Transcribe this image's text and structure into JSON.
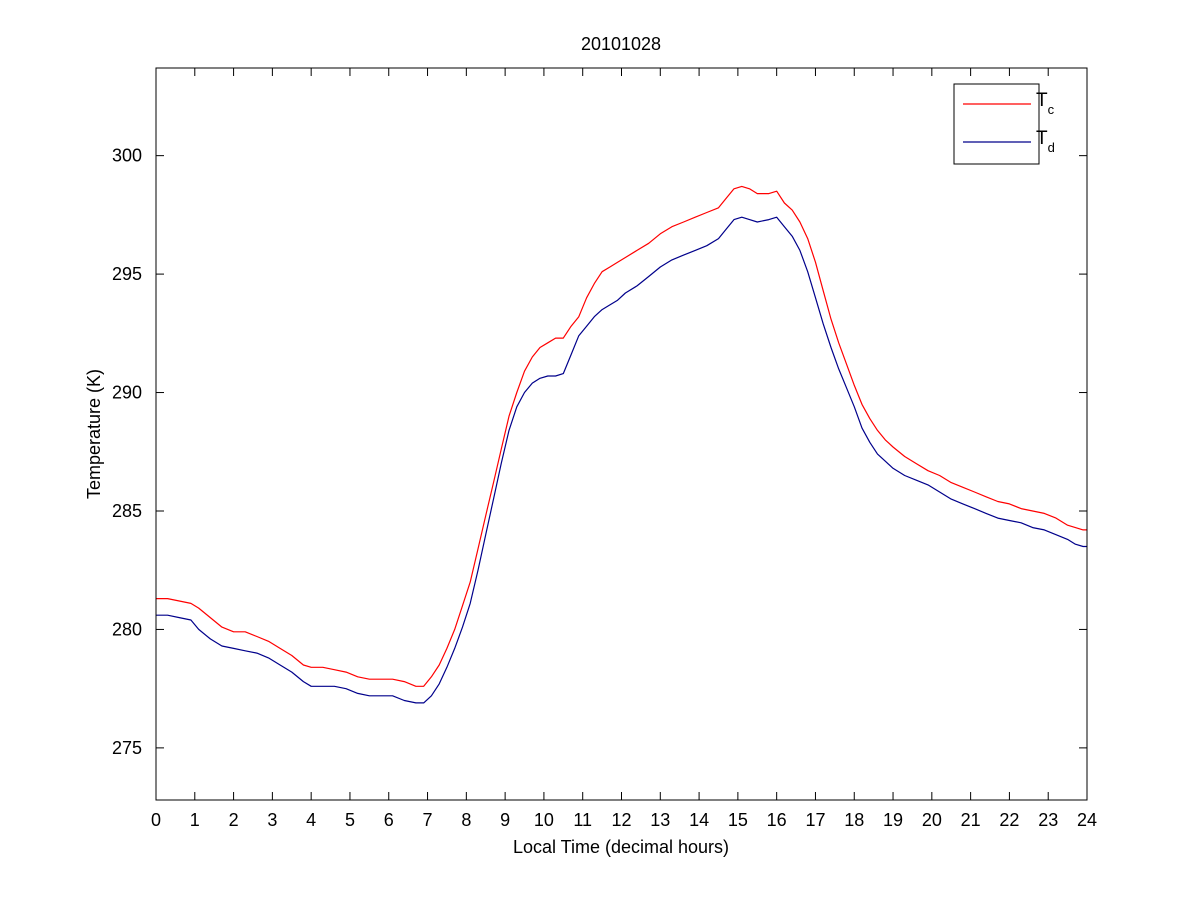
{
  "chart_data": {
    "type": "line",
    "title": "20101028",
    "xlabel": "Local Time (decimal hours)",
    "ylabel": "Temperature (K)",
    "xlim": [
      0,
      24
    ],
    "ylim": [
      272.8,
      303.7
    ],
    "xticks": [
      0,
      1,
      2,
      3,
      4,
      5,
      6,
      7,
      8,
      9,
      10,
      11,
      12,
      13,
      14,
      15,
      16,
      17,
      18,
      19,
      20,
      21,
      22,
      23,
      24
    ],
    "xtick_labels": [
      "0",
      "1",
      "2",
      "3",
      "4",
      "5",
      "6",
      "7",
      "8",
      "9",
      "10",
      "11",
      "12",
      "13",
      "14",
      "15",
      "16",
      "17",
      "18",
      "19",
      "20",
      "21",
      "22",
      "23",
      "24"
    ],
    "yticks": [
      275,
      280,
      285,
      290,
      295,
      300
    ],
    "ytick_labels": [
      "275",
      "280",
      "285",
      "290",
      "295",
      "300"
    ],
    "grid": false,
    "legend_position": "top-right",
    "series": [
      {
        "name": "T",
        "subscript": "c",
        "color": "#ff0000",
        "x": [
          0,
          0.3,
          0.6,
          0.9,
          1.1,
          1.4,
          1.7,
          2,
          2.3,
          2.6,
          2.9,
          3.2,
          3.5,
          3.8,
          4,
          4.3,
          4.6,
          4.9,
          5.2,
          5.5,
          5.8,
          6.1,
          6.4,
          6.7,
          6.9,
          7.1,
          7.3,
          7.5,
          7.7,
          7.9,
          8.1,
          8.3,
          8.5,
          8.7,
          8.9,
          9.1,
          9.3,
          9.5,
          9.7,
          9.9,
          10.1,
          10.3,
          10.5,
          10.7,
          10.9,
          11.1,
          11.3,
          11.5,
          11.7,
          11.9,
          12.1,
          12.4,
          12.7,
          13,
          13.3,
          13.6,
          13.9,
          14.2,
          14.5,
          14.7,
          14.9,
          15.1,
          15.3,
          15.5,
          15.8,
          16,
          16.2,
          16.4,
          16.6,
          16.8,
          17,
          17.2,
          17.4,
          17.6,
          17.8,
          18,
          18.2,
          18.4,
          18.6,
          18.8,
          19,
          19.3,
          19.6,
          19.9,
          20.2,
          20.5,
          20.8,
          21.1,
          21.4,
          21.7,
          22,
          22.3,
          22.6,
          22.9,
          23.2,
          23.5,
          23.7,
          23.9,
          24
        ],
        "y": [
          281.3,
          281.3,
          281.2,
          281.1,
          280.9,
          280.5,
          280.1,
          279.9,
          279.9,
          279.7,
          279.5,
          279.2,
          278.9,
          278.5,
          278.4,
          278.4,
          278.3,
          278.2,
          278.0,
          277.9,
          277.9,
          277.9,
          277.8,
          277.6,
          277.6,
          278.0,
          278.5,
          279.2,
          280.0,
          281.0,
          282.0,
          283.4,
          284.8,
          286.2,
          287.6,
          289.0,
          290.0,
          290.9,
          291.5,
          291.9,
          292.1,
          292.3,
          292.3,
          292.8,
          293.2,
          294.0,
          294.6,
          295.1,
          295.3,
          295.5,
          295.7,
          296.0,
          296.3,
          296.7,
          297.0,
          297.2,
          297.4,
          297.6,
          297.8,
          298.2,
          298.6,
          298.7,
          298.6,
          298.4,
          298.4,
          298.5,
          298.0,
          297.7,
          297.2,
          296.5,
          295.5,
          294.3,
          293.1,
          292.1,
          291.2,
          290.3,
          289.5,
          288.9,
          288.4,
          288.0,
          287.7,
          287.3,
          287.0,
          286.7,
          286.5,
          286.2,
          286.0,
          285.8,
          285.6,
          285.4,
          285.3,
          285.1,
          285.0,
          284.9,
          284.7,
          284.4,
          284.3,
          284.2,
          284.2
        ]
      },
      {
        "name": "T",
        "subscript": "d",
        "color": "#00008b",
        "x": [
          0,
          0.3,
          0.6,
          0.9,
          1.1,
          1.4,
          1.7,
          2,
          2.3,
          2.6,
          2.9,
          3.2,
          3.5,
          3.8,
          4,
          4.3,
          4.6,
          4.9,
          5.2,
          5.5,
          5.8,
          6.1,
          6.4,
          6.7,
          6.9,
          7.1,
          7.3,
          7.5,
          7.7,
          7.9,
          8.1,
          8.3,
          8.5,
          8.7,
          8.9,
          9.1,
          9.3,
          9.5,
          9.7,
          9.9,
          10.1,
          10.3,
          10.5,
          10.7,
          10.9,
          11.1,
          11.3,
          11.5,
          11.7,
          11.9,
          12.1,
          12.4,
          12.7,
          13,
          13.3,
          13.6,
          13.9,
          14.2,
          14.5,
          14.7,
          14.9,
          15.1,
          15.3,
          15.5,
          15.8,
          16,
          16.2,
          16.4,
          16.6,
          16.8,
          17,
          17.2,
          17.4,
          17.6,
          17.8,
          18,
          18.2,
          18.4,
          18.6,
          18.8,
          19,
          19.3,
          19.6,
          19.9,
          20.2,
          20.5,
          20.8,
          21.1,
          21.4,
          21.7,
          22,
          22.3,
          22.6,
          22.9,
          23.2,
          23.5,
          23.7,
          23.9,
          24
        ],
        "y": [
          280.6,
          280.6,
          280.5,
          280.4,
          280.0,
          279.6,
          279.3,
          279.2,
          279.1,
          279.0,
          278.8,
          278.5,
          278.2,
          277.8,
          277.6,
          277.6,
          277.6,
          277.5,
          277.3,
          277.2,
          277.2,
          277.2,
          277.0,
          276.9,
          276.9,
          277.2,
          277.7,
          278.4,
          279.2,
          280.1,
          281.1,
          282.5,
          284.0,
          285.5,
          287.0,
          288.4,
          289.4,
          290.0,
          290.4,
          290.6,
          290.7,
          290.7,
          290.8,
          291.6,
          292.4,
          292.8,
          293.2,
          293.5,
          293.7,
          293.9,
          294.2,
          294.5,
          294.9,
          295.3,
          295.6,
          295.8,
          296.0,
          296.2,
          296.5,
          296.9,
          297.3,
          297.4,
          297.3,
          297.2,
          297.3,
          297.4,
          297.0,
          296.6,
          296.0,
          295.1,
          294.0,
          292.9,
          291.9,
          291.0,
          290.2,
          289.4,
          288.5,
          287.9,
          287.4,
          287.1,
          286.8,
          286.5,
          286.3,
          286.1,
          285.8,
          285.5,
          285.3,
          285.1,
          284.9,
          284.7,
          284.6,
          284.5,
          284.3,
          284.2,
          284.0,
          283.8,
          283.6,
          283.5,
          283.5
        ]
      }
    ]
  }
}
